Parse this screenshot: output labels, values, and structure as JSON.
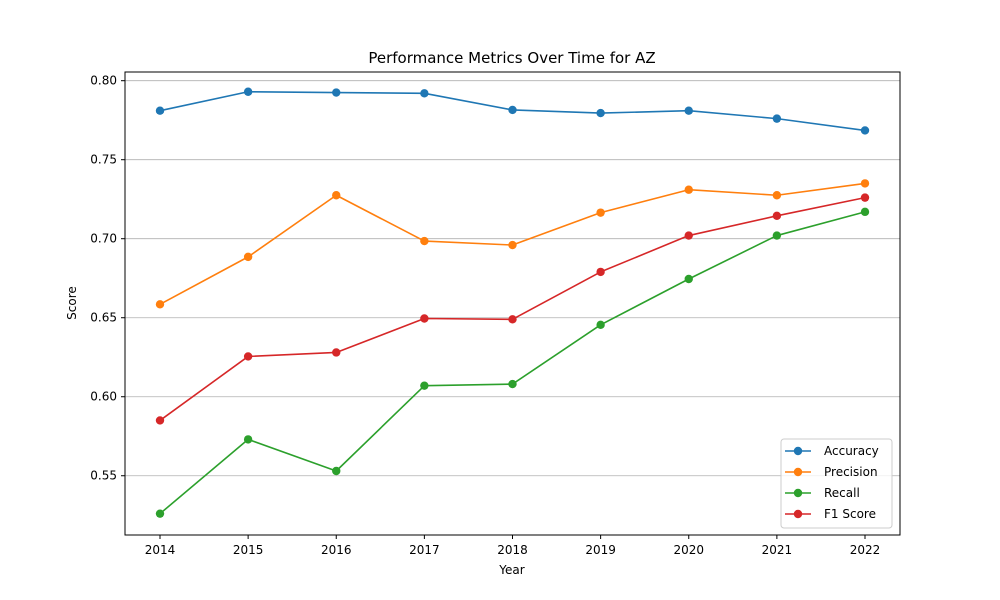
{
  "chart_data": {
    "type": "line",
    "title": "Performance Metrics Over Time for AZ",
    "xlabel": "Year",
    "ylabel": "Score",
    "x": [
      2014,
      2015,
      2016,
      2017,
      2018,
      2019,
      2020,
      2021,
      2022
    ],
    "x_tick_labels": [
      "2014",
      "2015",
      "2016",
      "2017",
      "2018",
      "2019",
      "2020",
      "2021",
      "2022"
    ],
    "ylim": [
      0.5125,
      0.8055
    ],
    "y_ticks": [
      0.55,
      0.6,
      0.65,
      0.7,
      0.75,
      0.8
    ],
    "y_tick_labels": [
      "0.55",
      "0.60",
      "0.65",
      "0.70",
      "0.75",
      "0.80"
    ],
    "grid": "horizontal",
    "legend_position": "lower-right",
    "series": [
      {
        "name": "Accuracy",
        "color": "#1f77b4",
        "values": [
          0.781,
          0.793,
          0.7925,
          0.792,
          0.7815,
          0.7795,
          0.781,
          0.776,
          0.7685
        ]
      },
      {
        "name": "Precision",
        "color": "#ff7f0e",
        "values": [
          0.6585,
          0.6885,
          0.7275,
          0.6985,
          0.696,
          0.7165,
          0.731,
          0.7275,
          0.735
        ]
      },
      {
        "name": "Recall",
        "color": "#2ca02c",
        "values": [
          0.526,
          0.573,
          0.553,
          0.607,
          0.608,
          0.6455,
          0.6745,
          0.702,
          0.717
        ]
      },
      {
        "name": "F1 Score",
        "color": "#d62728",
        "values": [
          0.585,
          0.6255,
          0.628,
          0.6495,
          0.649,
          0.679,
          0.702,
          0.7145,
          0.726
        ]
      }
    ]
  }
}
